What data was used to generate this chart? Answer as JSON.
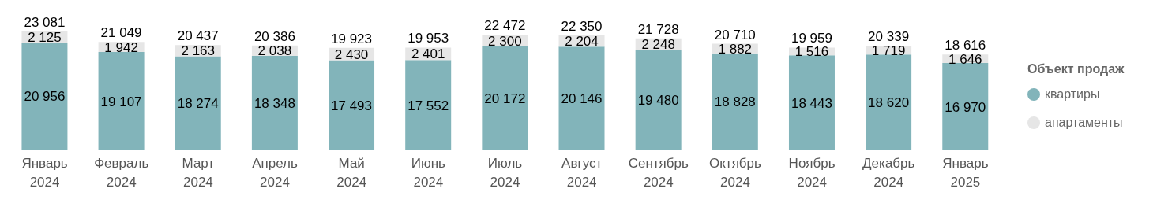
{
  "chart_data": {
    "type": "bar",
    "stacked": true,
    "legend_title": "Объект продаж",
    "legend": "right",
    "data_labels": true,
    "categories": [
      "Январь 2024",
      "Февраль 2024",
      "Март 2024",
      "Апрель 2024",
      "Май 2024",
      "Июнь 2024",
      "Июль 2024",
      "Август 2024",
      "Сентябрь 2024",
      "Октябрь 2024",
      "Ноябрь 2024",
      "Декабрь 2024",
      "Январь 2025"
    ],
    "series": [
      {
        "name": "квартиры",
        "color": "#82b4ba",
        "values": [
          20956,
          19107,
          18274,
          18348,
          17493,
          17552,
          20172,
          20146,
          19480,
          18828,
          18443,
          18620,
          16970
        ]
      },
      {
        "name": "апартаменты",
        "color": "#e6e6e6",
        "values": [
          2125,
          1942,
          2163,
          2038,
          2430,
          2401,
          2300,
          2204,
          2248,
          1882,
          1516,
          1719,
          1646
        ]
      }
    ],
    "totals": [
      "23 081",
      "21 049",
      "20 437",
      "20 386",
      "19 923",
      "19 953",
      "22 472",
      "22 350",
      "21 728",
      "20 710",
      "19 959",
      "20 339",
      "18 616"
    ]
  }
}
